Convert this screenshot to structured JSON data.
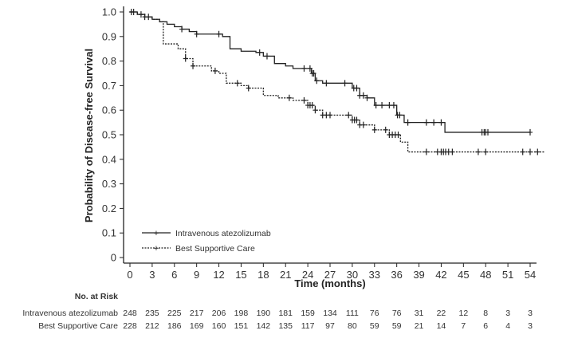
{
  "chart_data": {
    "type": "line",
    "subtype": "kaplan-meier step",
    "xlabel": "Time (months)",
    "ylabel": "Probability of Disease-free Survival",
    "xlim": [
      0,
      56
    ],
    "ylim": [
      0,
      1.0
    ],
    "xticks": [
      "0",
      "3",
      "6",
      "9",
      "12",
      "15",
      "18",
      "21",
      "24",
      "27",
      "30",
      "33",
      "36",
      "39",
      "42",
      "45",
      "48",
      "51",
      "54"
    ],
    "yticks": [
      "0",
      "0.1",
      "0.2",
      "0.3",
      "0.4",
      "0.5",
      "0.6",
      "0.7",
      "0.8",
      "0.9",
      "1.0"
    ],
    "grid": false,
    "legend_position": "bottom-left",
    "series": [
      {
        "name": "Intravenous atezolizumab",
        "style": "solid",
        "color": "#222222",
        "x": [
          0,
          1,
          2,
          3,
          4,
          5,
          6,
          7,
          8,
          9,
          12,
          12.5,
          13.5,
          15,
          17,
          18,
          19.5,
          21,
          22,
          24,
          24.5,
          25,
          26,
          29,
          30,
          31,
          32,
          33,
          35,
          36,
          37,
          42.5,
          54
        ],
        "y": [
          1.0,
          0.99,
          0.98,
          0.97,
          0.96,
          0.95,
          0.94,
          0.93,
          0.92,
          0.91,
          0.91,
          0.9,
          0.85,
          0.84,
          0.835,
          0.82,
          0.79,
          0.78,
          0.77,
          0.77,
          0.75,
          0.72,
          0.71,
          0.71,
          0.69,
          0.66,
          0.65,
          0.62,
          0.62,
          0.58,
          0.55,
          0.51,
          0.51
        ],
        "censored": [
          0.2,
          1.5,
          2.5,
          7,
          9,
          12,
          17.5,
          18.5,
          23.5,
          24.3,
          24.6,
          24.8,
          25.2,
          26.5,
          29,
          30.2,
          30.6,
          31,
          31.5,
          32,
          33.2,
          34,
          35,
          35.6,
          36.1,
          36.4,
          37.5,
          40,
          41,
          42,
          47.5,
          47.8,
          48,
          48.3,
          54
        ]
      },
      {
        "name": "Best Supportive Care",
        "style": "dotted",
        "color": "#222222",
        "x": [
          0,
          1,
          2,
          3,
          4,
          4.5,
          6.5,
          7.5,
          8.5,
          11,
          12,
          13,
          15,
          16,
          18,
          20,
          22,
          24,
          25,
          26,
          28,
          30,
          31,
          33,
          35,
          36.5,
          37.5,
          56
        ],
        "y": [
          1.0,
          0.99,
          0.98,
          0.97,
          0.96,
          0.87,
          0.85,
          0.81,
          0.78,
          0.76,
          0.75,
          0.71,
          0.7,
          0.69,
          0.66,
          0.65,
          0.64,
          0.62,
          0.6,
          0.58,
          0.58,
          0.56,
          0.54,
          0.52,
          0.5,
          0.47,
          0.43,
          0.43
        ],
        "censored": [
          0.5,
          2,
          7.5,
          8.5,
          11.5,
          14.5,
          16,
          21.5,
          23.5,
          24,
          24.3,
          24.6,
          25,
          26,
          26.5,
          27,
          29.5,
          30,
          30.3,
          30.6,
          31,
          31.5,
          33,
          34.5,
          35,
          35.4,
          35.8,
          36.2,
          40,
          41.5,
          42,
          42.3,
          42.6,
          43,
          43.5,
          47,
          48,
          53,
          54,
          55
        ]
      }
    ]
  },
  "risk_table": {
    "title": "No. at Risk",
    "rows": [
      {
        "label": "Intravenous atezolizumab",
        "values": [
          "248",
          "235",
          "225",
          "217",
          "206",
          "198",
          "190",
          "181",
          "159",
          "134",
          "111",
          "76",
          "76",
          "31",
          "22",
          "12",
          "8",
          "3",
          "3"
        ]
      },
      {
        "label": "Best Supportive Care",
        "values": [
          "228",
          "212",
          "186",
          "169",
          "160",
          "151",
          "142",
          "135",
          "117",
          "97",
          "80",
          "59",
          "59",
          "21",
          "14",
          "7",
          "6",
          "4",
          "3"
        ]
      }
    ]
  }
}
